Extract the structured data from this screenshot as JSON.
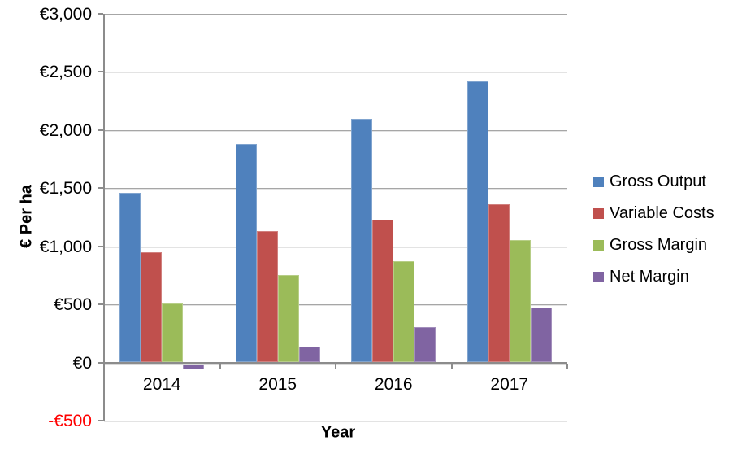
{
  "chart_data": {
    "type": "bar",
    "title": "",
    "xlabel": "Year",
    "ylabel": "€ Per ha",
    "categories": [
      "2014",
      "2015",
      "2016",
      "2017"
    ],
    "series": [
      {
        "name": "Gross Output",
        "color": "#4F81BD",
        "values": [
          1460,
          1880,
          2100,
          2420
        ]
      },
      {
        "name": "Variable Costs",
        "color": "#C0504D",
        "values": [
          950,
          1130,
          1230,
          1365
        ]
      },
      {
        "name": "Gross Margin",
        "color": "#9BBB59",
        "values": [
          510,
          750,
          870,
          1055
        ]
      },
      {
        "name": "Net Margin",
        "color": "#8064A2",
        "values": [
          -50,
          135,
          305,
          475
        ]
      }
    ],
    "ylim": [
      -500,
      3000
    ],
    "yticks": [
      {
        "value": 3000,
        "label": "€3,000"
      },
      {
        "value": 2500,
        "label": "€2,500"
      },
      {
        "value": 2000,
        "label": "€2,000"
      },
      {
        "value": 1500,
        "label": "€1,500"
      },
      {
        "value": 1000,
        "label": "€1,000"
      },
      {
        "value": 500,
        "label": "€500"
      },
      {
        "value": 0,
        "label": "€0"
      },
      {
        "value": -500,
        "label": "-€500",
        "color": "#FF0000"
      }
    ],
    "grid": true,
    "legend_position": "right",
    "colors": {
      "axis": "#8C8C8C",
      "gridline": "#A6A6A6",
      "text": "#000000",
      "negative_tick_label": "#FF0000"
    }
  }
}
